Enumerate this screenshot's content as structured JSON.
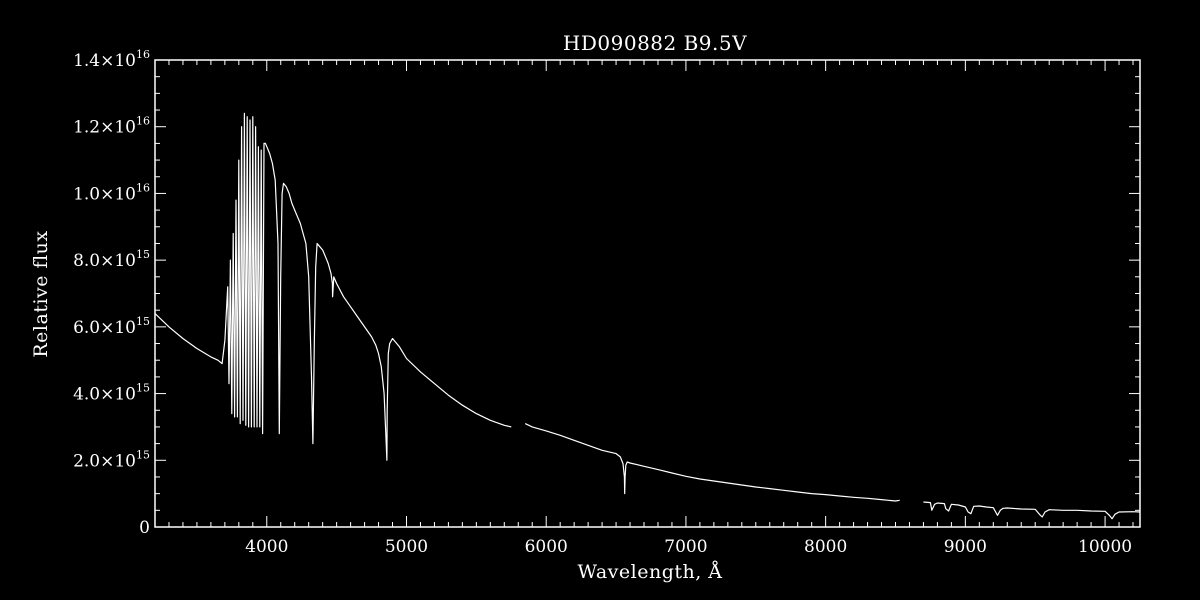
{
  "chart_data": {
    "type": "line",
    "title": "HD090882   B9.5V",
    "xlabel": "Wavelength, Å",
    "ylabel": "Relative flux",
    "xlim": [
      3200,
      10250
    ],
    "ylim": [
      0,
      1.4e+16
    ],
    "x_ticks": [
      4000,
      5000,
      6000,
      7000,
      8000,
      9000,
      10000
    ],
    "y_ticks": [
      {
        "value": 0,
        "mantissa": "0",
        "exponent": ""
      },
      {
        "value": 2000000000000000.0,
        "mantissa": "2.0×10",
        "exponent": "15"
      },
      {
        "value": 4000000000000000.0,
        "mantissa": "4.0×10",
        "exponent": "15"
      },
      {
        "value": 6000000000000000.0,
        "mantissa": "6.0×10",
        "exponent": "15"
      },
      {
        "value": 8000000000000000.0,
        "mantissa": "8.0×10",
        "exponent": "15"
      },
      {
        "value": 1e+16,
        "mantissa": "1.0×10",
        "exponent": "16"
      },
      {
        "value": 1.2e+16,
        "mantissa": "1.2×10",
        "exponent": "16"
      },
      {
        "value": 1.4e+16,
        "mantissa": "1.4×10",
        "exponent": "16"
      }
    ],
    "series": [
      {
        "segments": [
          {
            "x": [
              3200,
              3300,
              3400,
              3500,
              3600,
              3650,
              3680,
              3700,
              3710,
              3720,
              3730,
              3740,
              3750,
              3760,
              3770,
              3780,
              3790,
              3800,
              3810,
              3820,
              3830,
              3840,
              3850,
              3860,
              3870,
              3880,
              3890,
              3900,
              3910,
              3920,
              3930,
              3940,
              3950,
              3960,
              3970,
              3980,
              3990,
              4000,
              4020,
              4040,
              4060,
              4080,
              4090,
              4100,
              4110,
              4120,
              4140,
              4160,
              4180,
              4200,
              4220,
              4240,
              4260,
              4280,
              4300,
              4320,
              4330,
              4340,
              4350,
              4360,
              4380,
              4400,
              4420,
              4440,
              4460,
              4470,
              4471,
              4480,
              4500,
              4550,
              4600,
              4650,
              4700,
              4750,
              4780,
              4800,
              4820,
              4840,
              4850,
              4860,
              4862,
              4870,
              4880,
              4900,
              4950,
              5000,
              5100,
              5200,
              5300,
              5400,
              5500,
              5600,
              5700,
              5750
            ],
            "y": [
              6400000000000000.0,
              6000000000000000.0,
              5650000000000000.0,
              5350000000000000.0,
              5100000000000000.0,
              5000000000000000.0,
              4900000000000000.0,
              5600000000000000.0,
              6400000000000000.0,
              7200000000000000.0,
              4300000000000000.0,
              8000000000000000.0,
              3400000000000000.0,
              8800000000000000.0,
              3300000000000000.0,
              9800000000000000.0,
              3300000000000000.0,
              1.1e+16,
              3100000000000000.0,
              1.2e+16,
              3200000000000000.0,
              1.24e+16,
              3050000000000000.0,
              1.23e+16,
              3000000000000000.0,
              1.22e+16,
              3000000000000000.0,
              1.23e+16,
              3000000000000000.0,
              1.2e+16,
              3000000000000000.0,
              1.14e+16,
              3000000000000000.0,
              1.13e+16,
              2800000000000000.0,
              1.15e+16,
              1.15e+16,
              1.14e+16,
              1.12e+16,
              1.09e+16,
              1.04e+16,
              8500000000000000.0,
              2800000000000000.0,
              7500000000000000.0,
              1e+16,
              1.03e+16,
              1.02e+16,
              1e+16,
              9700000000000000.0,
              9500000000000000.0,
              9300000000000000.0,
              9100000000000000.0,
              8800000000000000.0,
              8500000000000000.0,
              7500000000000000.0,
              4500000000000000.0,
              2500000000000000.0,
              5500000000000000.0,
              7800000000000000.0,
              8500000000000000.0,
              8400000000000000.0,
              8300000000000000.0,
              8100000000000000.0,
              7900000000000000.0,
              7600000000000000.0,
              7300000000000000.0,
              6900000000000000.0,
              7500000000000000.0,
              7300000000000000.0,
              6900000000000000.0,
              6600000000000000.0,
              6300000000000000.0,
              6000000000000000.0,
              5700000000000000.0,
              5450000000000000.0,
              5200000000000000.0,
              4800000000000000.0,
              4000000000000000.0,
              3000000000000000.0,
              2000000000000000.0,
              3500000000000000.0,
              5200000000000000.0,
              5500000000000000.0,
              5650000000000000.0,
              5400000000000000.0,
              5050000000000000.0,
              4650000000000000.0,
              4300000000000000.0,
              3950000000000000.0,
              3650000000000000.0,
              3400000000000000.0,
              3200000000000000.0,
              3050000000000000.0,
              3000000000000000.0
            ]
          },
          {
            "x": [
              5850,
              5900,
              6000,
              6100,
              6200,
              6300,
              6400,
              6450,
              6500,
              6530,
              6550,
              6560,
              6562,
              6565,
              6570,
              6580,
              6600,
              6700,
              6800,
              6900,
              7000,
              7100,
              7200,
              7300,
              7400,
              7500,
              7600,
              7700,
              7800,
              7900,
              8000,
              8100,
              8200,
              8300,
              8400,
              8450,
              8500,
              8530
            ],
            "y": [
              3100000000000000.0,
              3000000000000000.0,
              2880000000000000.0,
              2750000000000000.0,
              2600000000000000.0,
              2450000000000000.0,
              2300000000000000.0,
              2250000000000000.0,
              2200000000000000.0,
              2100000000000000.0,
              1900000000000000.0,
              1500000000000000.0,
              1000000000000000.0,
              1500000000000000.0,
              1850000000000000.0,
              1950000000000000.0,
              1920000000000000.0,
              1820000000000000.0,
              1720000000000000.0,
              1620000000000000.0,
              1520000000000000.0,
              1440000000000000.0,
              1380000000000000.0,
              1320000000000000.0,
              1260000000000000.0,
              1200000000000000.0,
              1150000000000000.0,
              1100000000000000.0,
              1050000000000000.0,
              1000000000000000.0,
              970000000000000.0,
              930000000000000.0,
              890000000000000.0,
              860000000000000.0,
              820000000000000.0,
              800000000000000.0,
              780000000000000.0,
              800000000000000.0
            ]
          },
          {
            "x": [
              8700,
              8750,
              8760,
              8780,
              8800,
              8850,
              8860,
              8880,
              8900,
              8950,
              9000,
              9020,
              9040,
              9060,
              9100,
              9150,
              9200,
              9230,
              9250,
              9270,
              9300,
              9400,
              9500,
              9530,
              9550,
              9570,
              9600,
              9700,
              9800,
              9900,
              10000,
              10030,
              10050,
              10070,
              10100,
              10200,
              10250
            ],
            "y": [
              750000000000000.0,
              730000000000000.0,
              500000000000000.0,
              680000000000000.0,
              720000000000000.0,
              700000000000000.0,
              550000000000000.0,
              480000000000000.0,
              680000000000000.0,
              660000000000000.0,
              600000000000000.0,
              450000000000000.0,
              400000000000000.0,
              620000000000000.0,
              630000000000000.0,
              600000000000000.0,
              580000000000000.0,
              350000000000000.0,
              500000000000000.0,
              560000000000000.0,
              570000000000000.0,
              540000000000000.0,
              530000000000000.0,
              380000000000000.0,
              300000000000000.0,
              450000000000000.0,
              520000000000000.0,
              500000000000000.0,
              500000000000000.0,
              480000000000000.0,
              470000000000000.0,
              350000000000000.0,
              250000000000000.0,
              380000000000000.0,
              450000000000000.0,
              460000000000000.0,
              450000000000000.0
            ]
          }
        ]
      }
    ]
  }
}
